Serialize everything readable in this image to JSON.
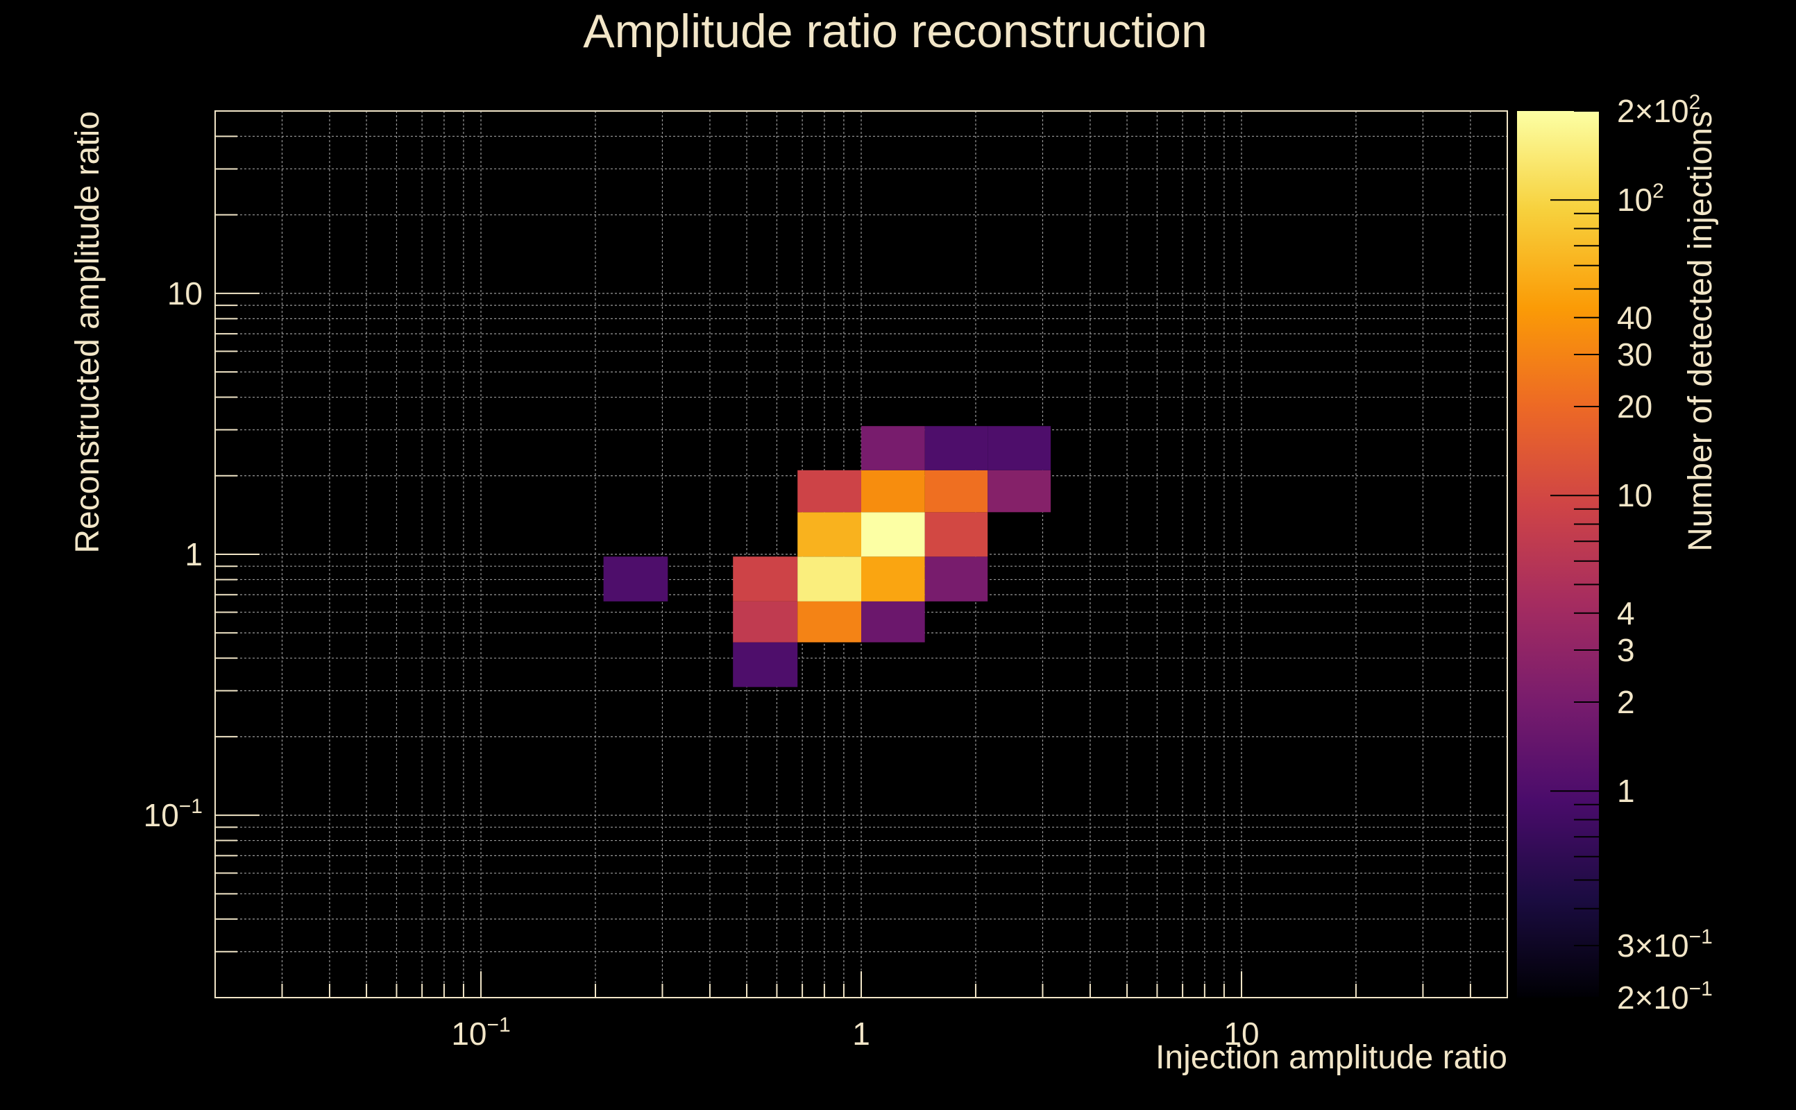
{
  "chart_data": {
    "type": "heatmap",
    "title": "Amplitude ratio reconstruction",
    "xlabel": "Injection amplitude ratio",
    "ylabel": "Reconstructed amplitude ratio",
    "zlabel": "Number of detected injections",
    "x_scale": "log",
    "y_scale": "log",
    "z_scale": "log",
    "xlim": [
      0.02,
      50
    ],
    "ylim": [
      0.02,
      50
    ],
    "zlim": [
      0.2,
      200
    ],
    "grid": true,
    "colormap": [
      "#000004",
      "#1b0c41",
      "#4a0c6b",
      "#781c6d",
      "#a52c60",
      "#cf4446",
      "#ed6925",
      "#fb9b06",
      "#f7d13d",
      "#fcffa4"
    ],
    "x_tick_labels": [
      {
        "value": 0.1,
        "base": "10",
        "exp": "−1"
      },
      {
        "value": 1,
        "base": "1",
        "exp": ""
      },
      {
        "value": 10,
        "base": "10",
        "exp": ""
      }
    ],
    "y_tick_labels": [
      {
        "value": 0.1,
        "base": "10",
        "exp": "−1"
      },
      {
        "value": 1,
        "base": "1",
        "exp": ""
      },
      {
        "value": 10,
        "base": "10",
        "exp": ""
      }
    ],
    "z_tick_labels": [
      {
        "value": 0.2,
        "base": "2×10",
        "exp": "−1"
      },
      {
        "value": 0.3,
        "base": "3×10",
        "exp": "−1"
      },
      {
        "value": 1,
        "base": "1",
        "exp": ""
      },
      {
        "value": 2,
        "base": "2",
        "exp": ""
      },
      {
        "value": 3,
        "base": "3",
        "exp": ""
      },
      {
        "value": 4,
        "base": "4",
        "exp": ""
      },
      {
        "value": 10,
        "base": "10",
        "exp": ""
      },
      {
        "value": 20,
        "base": "20",
        "exp": ""
      },
      {
        "value": 30,
        "base": "30",
        "exp": ""
      },
      {
        "value": 40,
        "base": "40",
        "exp": ""
      },
      {
        "value": 100,
        "base": "10",
        "exp": "2"
      },
      {
        "value": 200,
        "base": "2×10",
        "exp": "2"
      }
    ],
    "cells": [
      {
        "x0": 0.21,
        "x1": 0.31,
        "y0": 0.66,
        "y1": 0.98,
        "z": 1
      },
      {
        "x0": 0.46,
        "x1": 0.68,
        "y0": 0.31,
        "y1": 0.46,
        "z": 1
      },
      {
        "x0": 0.46,
        "x1": 0.68,
        "y0": 0.46,
        "y1": 0.66,
        "z": 7
      },
      {
        "x0": 0.46,
        "x1": 0.68,
        "y0": 0.66,
        "y1": 0.98,
        "z": 9
      },
      {
        "x0": 0.68,
        "x1": 1.0,
        "y0": 0.46,
        "y1": 0.66,
        "z": 30
      },
      {
        "x0": 0.68,
        "x1": 1.0,
        "y0": 0.66,
        "y1": 0.98,
        "z": 150
      },
      {
        "x0": 0.68,
        "x1": 1.0,
        "y0": 0.98,
        "y1": 1.45,
        "z": 60
      },
      {
        "x0": 0.68,
        "x1": 1.0,
        "y0": 1.45,
        "y1": 2.1,
        "z": 9
      },
      {
        "x0": 1.0,
        "x1": 1.47,
        "y0": 0.46,
        "y1": 0.66,
        "z": 1.6
      },
      {
        "x0": 1.0,
        "x1": 1.47,
        "y0": 0.66,
        "y1": 0.98,
        "z": 50
      },
      {
        "x0": 1.0,
        "x1": 1.47,
        "y0": 0.98,
        "y1": 1.45,
        "z": 200
      },
      {
        "x0": 1.0,
        "x1": 1.47,
        "y0": 1.45,
        "y1": 2.1,
        "z": 35
      },
      {
        "x0": 1.0,
        "x1": 1.47,
        "y0": 2.1,
        "y1": 3.1,
        "z": 2
      },
      {
        "x0": 1.47,
        "x1": 2.15,
        "y0": 0.66,
        "y1": 0.98,
        "z": 2
      },
      {
        "x0": 1.47,
        "x1": 2.15,
        "y0": 0.98,
        "y1": 1.45,
        "z": 10
      },
      {
        "x0": 1.47,
        "x1": 2.15,
        "y0": 1.45,
        "y1": 2.1,
        "z": 22
      },
      {
        "x0": 1.47,
        "x1": 2.15,
        "y0": 2.1,
        "y1": 3.1,
        "z": 1
      },
      {
        "x0": 2.15,
        "x1": 3.15,
        "y0": 1.45,
        "y1": 2.1,
        "z": 2.5
      },
      {
        "x0": 2.15,
        "x1": 3.15,
        "y0": 2.1,
        "y1": 3.1,
        "z": 1
      }
    ]
  }
}
